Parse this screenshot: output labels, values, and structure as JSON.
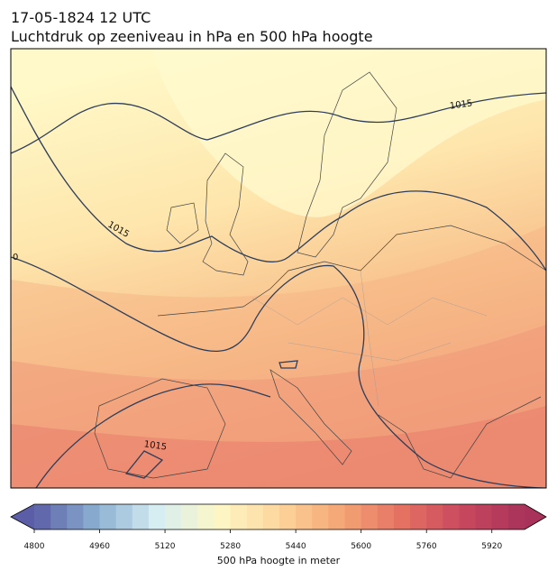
{
  "header": {
    "title": "17-05-1824 12 UTC",
    "subtitle": "Luchtdruk op zeeniveau in hPa en 500 hPa hoogte"
  },
  "map": {
    "contour_labels": [
      "1015",
      "1015",
      "1015",
      "0"
    ]
  },
  "colorbar": {
    "type": "colorbar",
    "lim": [
      4800,
      6000
    ],
    "step": 40,
    "ticks": [
      4800,
      4960,
      5120,
      5280,
      5440,
      5600,
      5760,
      5920
    ],
    "colormap": [
      "#5b5ea6",
      "#8aaed1",
      "#d6edf2",
      "#fdf7c6",
      "#fdd59c",
      "#f4a575",
      "#e57163",
      "#c8475e",
      "#a8325a"
    ],
    "label": "500 hPa hoogte in meter"
  }
}
